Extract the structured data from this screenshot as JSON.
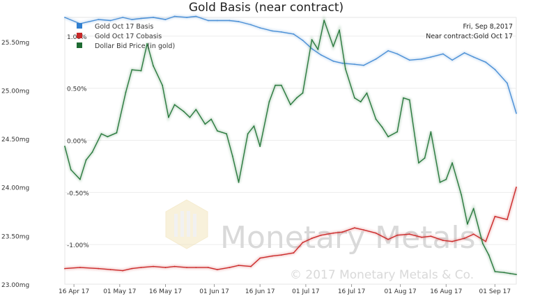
{
  "chart_data": {
    "type": "line",
    "title": "Gold Basis (near contract)",
    "annotation": {
      "date": "Fri, Sep 8,2017",
      "contract": "Near contract:Gold Oct 17"
    },
    "watermark": {
      "brand": "Monetary Metals",
      "copyright": "© 2017 Monetary Metals & Co."
    },
    "x_axis": {
      "labels": [
        "16 Apr 17",
        "01 May 17",
        "16 May 17",
        "01 Jun 17",
        "16 Jun 17",
        "01 Jul 17",
        "16 Jul 17",
        "01 Aug 17",
        "16 Aug 17",
        "01 Sep 17"
      ],
      "start": "2017-04-13",
      "end": "2017-09-08"
    },
    "y_left": {
      "ticks": [
        "25.50mg",
        "25.00mg",
        "24.50mg",
        "24.00mg",
        "23.50mg",
        "23.00mg"
      ],
      "range": [
        23.0,
        25.75
      ]
    },
    "y_right": {
      "ticks": [
        "1.00%",
        "0.50%",
        "0.00%",
        "-0.50%",
        "-1.00%"
      ],
      "range": [
        -1.38,
        1.18
      ]
    },
    "grid": true,
    "legend_position": "top-left",
    "series": [
      {
        "name": "Gold Oct 17 Basis",
        "color": "#4a8fd6",
        "axis": "right",
        "x": [
          "2017-04-13",
          "2017-04-18",
          "2017-04-24",
          "2017-04-28",
          "2017-05-02",
          "2017-05-05",
          "2017-05-08",
          "2017-05-12",
          "2017-05-16",
          "2017-05-19",
          "2017-05-23",
          "2017-05-26",
          "2017-05-30",
          "2017-06-02",
          "2017-06-06",
          "2017-06-09",
          "2017-06-13",
          "2017-06-16",
          "2017-06-20",
          "2017-06-23",
          "2017-06-27",
          "2017-06-30",
          "2017-07-03",
          "2017-07-06",
          "2017-07-10",
          "2017-07-13",
          "2017-07-17",
          "2017-07-20",
          "2017-07-24",
          "2017-07-28",
          "2017-07-31",
          "2017-08-04",
          "2017-08-08",
          "2017-08-11",
          "2017-08-15",
          "2017-08-18",
          "2017-08-22",
          "2017-08-25",
          "2017-08-29",
          "2017-09-01",
          "2017-09-05",
          "2017-09-08"
        ],
        "values": [
          1.18,
          1.12,
          1.16,
          1.15,
          1.18,
          1.16,
          1.17,
          1.18,
          1.16,
          1.19,
          1.18,
          1.19,
          1.15,
          1.15,
          1.15,
          1.14,
          1.11,
          1.08,
          1.05,
          1.04,
          1.02,
          0.96,
          0.88,
          0.82,
          0.76,
          0.74,
          0.73,
          0.72,
          0.78,
          0.86,
          0.83,
          0.77,
          0.78,
          0.8,
          0.83,
          0.77,
          0.84,
          0.8,
          0.75,
          0.68,
          0.55,
          0.26
        ]
      },
      {
        "name": "Gold Oct 17 Cobasis",
        "color": "#cc2a2a",
        "axis": "right",
        "x": [
          "2017-04-13",
          "2017-04-18",
          "2017-04-24",
          "2017-04-28",
          "2017-05-02",
          "2017-05-05",
          "2017-05-08",
          "2017-05-12",
          "2017-05-16",
          "2017-05-19",
          "2017-05-23",
          "2017-05-26",
          "2017-05-30",
          "2017-06-02",
          "2017-06-06",
          "2017-06-09",
          "2017-06-13",
          "2017-06-16",
          "2017-06-20",
          "2017-06-23",
          "2017-06-27",
          "2017-06-30",
          "2017-07-03",
          "2017-07-06",
          "2017-07-10",
          "2017-07-13",
          "2017-07-17",
          "2017-07-20",
          "2017-07-24",
          "2017-07-28",
          "2017-07-31",
          "2017-08-04",
          "2017-08-08",
          "2017-08-11",
          "2017-08-15",
          "2017-08-18",
          "2017-08-22",
          "2017-08-25",
          "2017-08-29",
          "2017-09-01",
          "2017-09-05",
          "2017-09-08"
        ],
        "values": [
          -1.23,
          -1.22,
          -1.23,
          -1.24,
          -1.25,
          -1.23,
          -1.22,
          -1.21,
          -1.22,
          -1.21,
          -1.22,
          -1.22,
          -1.22,
          -1.24,
          -1.22,
          -1.2,
          -1.21,
          -1.13,
          -1.11,
          -1.1,
          -1.08,
          -0.98,
          -0.94,
          -0.91,
          -0.89,
          -0.88,
          -0.84,
          -0.86,
          -0.89,
          -0.95,
          -0.91,
          -0.9,
          -0.93,
          -0.92,
          -0.96,
          -0.97,
          -0.94,
          -0.9,
          -0.97,
          -0.73,
          -0.76,
          -0.45
        ]
      },
      {
        "name": "Dollar Bid Price (in gold)",
        "color": "#2a7a3e",
        "axis": "left",
        "x": [
          "2017-04-13",
          "2017-04-15",
          "2017-04-18",
          "2017-04-20",
          "2017-04-22",
          "2017-04-25",
          "2017-04-27",
          "2017-04-30",
          "2017-05-03",
          "2017-05-05",
          "2017-05-08",
          "2017-05-10",
          "2017-05-12",
          "2017-05-15",
          "2017-05-17",
          "2017-05-19",
          "2017-05-22",
          "2017-05-24",
          "2017-05-26",
          "2017-05-29",
          "2017-05-31",
          "2017-06-02",
          "2017-06-05",
          "2017-06-07",
          "2017-06-09",
          "2017-06-12",
          "2017-06-14",
          "2017-06-16",
          "2017-06-19",
          "2017-06-21",
          "2017-06-23",
          "2017-06-26",
          "2017-06-28",
          "2017-06-30",
          "2017-07-03",
          "2017-07-05",
          "2017-07-07",
          "2017-07-10",
          "2017-07-12",
          "2017-07-14",
          "2017-07-17",
          "2017-07-19",
          "2017-07-21",
          "2017-07-24",
          "2017-07-26",
          "2017-07-28",
          "2017-07-31",
          "2017-08-02",
          "2017-08-04",
          "2017-08-07",
          "2017-08-09",
          "2017-08-11",
          "2017-08-14",
          "2017-08-16",
          "2017-08-18",
          "2017-08-21",
          "2017-08-23",
          "2017-08-25",
          "2017-08-28",
          "2017-08-30",
          "2017-09-01",
          "2017-09-04",
          "2017-09-06",
          "2017-09-08"
        ],
        "values": [
          24.42,
          24.18,
          24.08,
          24.28,
          24.36,
          24.55,
          24.52,
          24.56,
          24.98,
          25.21,
          25.2,
          25.48,
          25.25,
          25.05,
          24.72,
          24.85,
          24.78,
          24.72,
          24.8,
          24.65,
          24.7,
          24.58,
          24.55,
          24.32,
          24.05,
          24.55,
          24.63,
          24.42,
          24.88,
          25.05,
          25.05,
          24.85,
          24.92,
          24.97,
          25.52,
          25.42,
          25.72,
          25.45,
          25.62,
          25.22,
          24.92,
          24.88,
          24.97,
          24.7,
          24.62,
          24.52,
          24.57,
          24.92,
          24.9,
          24.25,
          24.3,
          24.57,
          24.05,
          24.08,
          24.25,
          23.92,
          23.62,
          23.78,
          23.42,
          23.3,
          23.13,
          23.12,
          23.11,
          23.1
        ]
      }
    ]
  }
}
